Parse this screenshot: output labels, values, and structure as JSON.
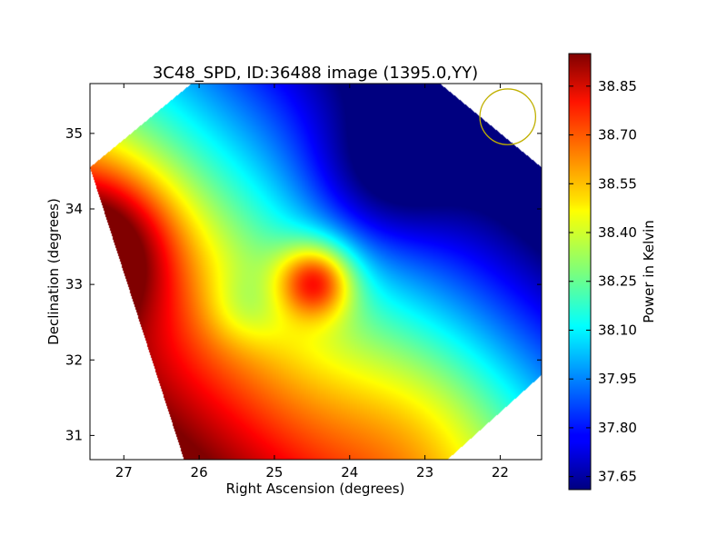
{
  "chart_data": {
    "type": "heatmap",
    "title": "3C48_SPD, ID:36488 image (1395.0,YY)",
    "xlabel": "Right Ascension (degrees)",
    "ylabel": "Declination (degrees)",
    "x_axis_inverted": true,
    "xlim": [
      27.45,
      21.45
    ],
    "ylim": [
      30.68,
      35.66
    ],
    "xticks": [
      27,
      26,
      25,
      24,
      23,
      22
    ],
    "xtick_labels": [
      "27",
      "26",
      "25",
      "24",
      "23",
      "22"
    ],
    "yticks": [
      31,
      32,
      33,
      34,
      35
    ],
    "ytick_labels": [
      "31",
      "32",
      "33",
      "34",
      "35"
    ],
    "grid": false,
    "colormap": "jet",
    "colorbar": {
      "label": "Power in Kelvin",
      "range": [
        37.61,
        38.95
      ],
      "ticks": [
        37.65,
        37.8,
        37.95,
        38.1,
        38.25,
        38.4,
        38.55,
        38.7,
        38.85
      ],
      "tick_labels": [
        "37.65",
        "37.80",
        "37.95",
        "38.10",
        "38.25",
        "38.40",
        "38.55",
        "38.70",
        "38.85"
      ]
    },
    "image_field": {
      "description_of_features": "smooth temperature map masked to a rotated square footprint",
      "baseline": {
        "value": 38.2,
        "gradient_per_deg": 0.12
      },
      "features": [
        {
          "ra": 27.35,
          "dec": 33.5,
          "amplitude": 0.55,
          "sigma": 0.75
        },
        {
          "ra": 24.45,
          "dec": 33.05,
          "amplitude": 0.55,
          "sigma": 0.35
        },
        {
          "ra": 25.4,
          "dec": 32.7,
          "amplitude": -0.12,
          "sigma": 0.35
        },
        {
          "ra": 23.6,
          "dec": 34.4,
          "amplitude": -0.25,
          "sigma": 0.7
        },
        {
          "ra": 23.0,
          "dec": 31.2,
          "amplitude": 0.15,
          "sigma": 0.9
        }
      ],
      "footprint_corners": [
        {
          "ra": 27.45,
          "dec": 34.55
        },
        {
          "ra": 26.2,
          "dec": 30.68
        },
        {
          "ra": 22.7,
          "dec": 30.68
        },
        {
          "ra": 21.45,
          "dec": 31.8
        },
        {
          "ra": 21.45,
          "dec": 34.55
        },
        {
          "ra": 22.8,
          "dec": 35.66
        },
        {
          "ra": 26.1,
          "dec": 35.66
        }
      ]
    },
    "beam_marker": {
      "ra": 21.9,
      "dec": 35.22,
      "radius_deg": 0.37,
      "color": "#c0b000"
    }
  }
}
